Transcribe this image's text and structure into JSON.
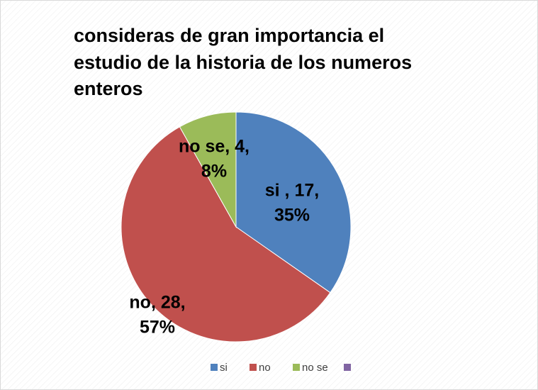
{
  "chart_data": {
    "type": "pie",
    "title": [
      "consideras de gran importancia el",
      "estudio de la historia de los numeros",
      "enteros"
    ],
    "categories": [
      "si ",
      "no",
      "no se",
      null
    ],
    "values": [
      17,
      28,
      4,
      null
    ],
    "value_labels": [
      [
        "si , 17,",
        "35%"
      ],
      [
        "no, 28,",
        "57%"
      ],
      [
        "no se, 4,",
        "8%"
      ],
      null
    ],
    "colors": [
      "#4f81bd",
      "#c0504d",
      "#9bbb59",
      "#8064a2"
    ],
    "legend": "bottom"
  }
}
